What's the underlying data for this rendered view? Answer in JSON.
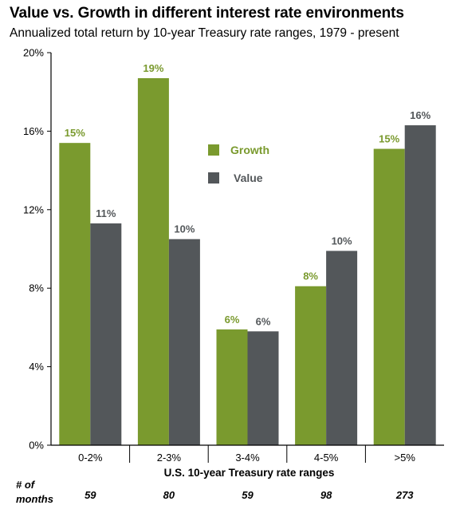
{
  "header": {
    "title": "Value vs. Growth in different interest rate environments",
    "subtitle": "Annualized total return by 10-year Treasury rate ranges, 1979 - present"
  },
  "chart_data": {
    "type": "bar",
    "title": "Value vs. Growth in different interest rate environments",
    "subtitle": "Annualized total return by 10-year Treasury rate ranges, 1979 - present",
    "xlabel": "U.S. 10-year Treasury rate ranges",
    "ylabel": "",
    "categories": [
      "0-2%",
      "2-3%",
      "3-4%",
      "4-5%",
      ">5%"
    ],
    "yticks": [
      "0%",
      "4%",
      "8%",
      "12%",
      "16%",
      "20%"
    ],
    "ylim": [
      0,
      20
    ],
    "grid": false,
    "legend_position": "center",
    "series": [
      {
        "name": "Growth",
        "color": "#7a9a2e",
        "values": [
          15.4,
          18.7,
          5.9,
          8.1,
          15.1
        ],
        "labels": [
          "15%",
          "19%",
          "6%",
          "8%",
          "15%"
        ]
      },
      {
        "name": "Value",
        "color": "#53575a",
        "values": [
          11.3,
          10.5,
          5.8,
          9.9,
          16.3
        ],
        "labels": [
          "11%",
          "10%",
          "6%",
          "10%",
          "16%"
        ]
      }
    ],
    "months_header": [
      "# of",
      "months"
    ],
    "months": [
      "59",
      "80",
      "59",
      "98",
      "273"
    ]
  }
}
